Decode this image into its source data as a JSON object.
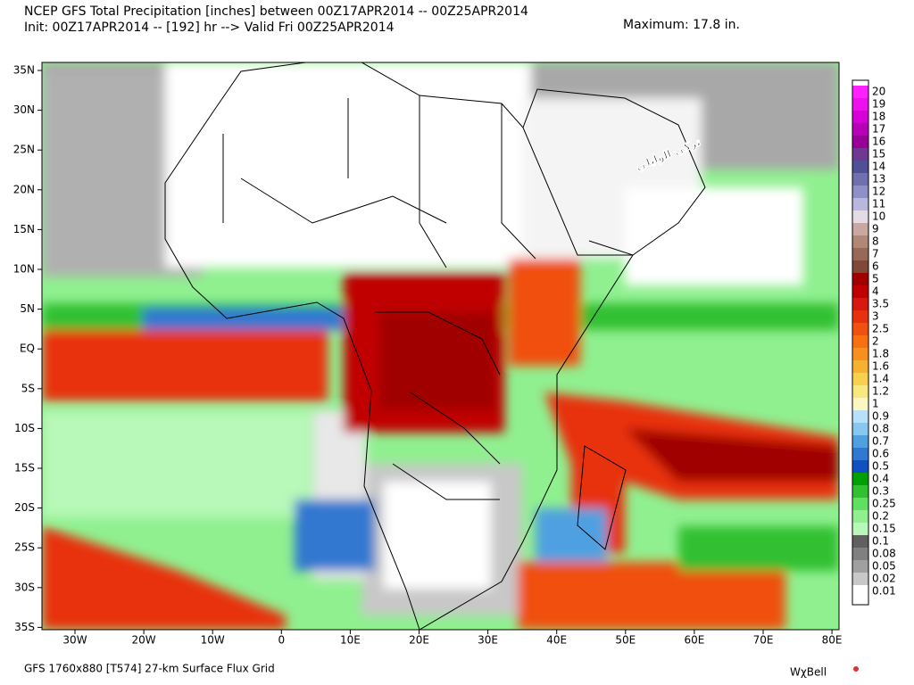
{
  "header": {
    "line1": "NCEP GFS Total Precipitation [inches] between 00Z17APR2014 -- 00Z25APR2014",
    "line2": "Init: 00Z17APR2014 -- [192] hr --> Valid Fri 00Z25APR2014",
    "maximum": "Maximum:   17.8 in."
  },
  "watermark": "تركي الوايلي",
  "map": {
    "lat_labels": [
      "35N",
      "30N",
      "25N",
      "20N",
      "15N",
      "10N",
      "5N",
      "EQ",
      "5S",
      "10S",
      "15S",
      "20S",
      "25S",
      "30S",
      "35S"
    ],
    "lon_labels": [
      "30W",
      "20W",
      "10W",
      "0",
      "10E",
      "20E",
      "30E",
      "40E",
      "50E",
      "60E",
      "70E",
      "80E"
    ]
  },
  "colorbar": [
    {
      "label": "20",
      "color": "#ff20ff"
    },
    {
      "label": "19",
      "color": "#ee10ee"
    },
    {
      "label": "18",
      "color": "#d800d8"
    },
    {
      "label": "17",
      "color": "#b800b8"
    },
    {
      "label": "16",
      "color": "#980098"
    },
    {
      "label": "15",
      "color": "#703890"
    },
    {
      "label": "14",
      "color": "#505098"
    },
    {
      "label": "13",
      "color": "#7070b0"
    },
    {
      "label": "12",
      "color": "#9090c8"
    },
    {
      "label": "11",
      "color": "#b8b8dc"
    },
    {
      "label": "10",
      "color": "#e4dce4"
    },
    {
      "label": "9",
      "color": "#c8a8a0"
    },
    {
      "label": "8",
      "color": "#b08878"
    },
    {
      "label": "7",
      "color": "#986858"
    },
    {
      "label": "6",
      "color": "#804838"
    },
    {
      "label": "5",
      "color": "#a00000"
    },
    {
      "label": "4",
      "color": "#c00000"
    },
    {
      "label": "3.5",
      "color": "#d81810"
    },
    {
      "label": "3",
      "color": "#e83010"
    },
    {
      "label": "2.5",
      "color": "#f05010"
    },
    {
      "label": "2",
      "color": "#f87010"
    },
    {
      "label": "1.8",
      "color": "#f89020"
    },
    {
      "label": "1.6",
      "color": "#f8b030"
    },
    {
      "label": "1.4",
      "color": "#f8d050"
    },
    {
      "label": "1.2",
      "color": "#f8e880"
    },
    {
      "label": "1",
      "color": "#f8f8c0"
    },
    {
      "label": "0.9",
      "color": "#b8e0f8"
    },
    {
      "label": "0.8",
      "color": "#88c8f0"
    },
    {
      "label": "0.7",
      "color": "#50a0e0"
    },
    {
      "label": "0.6",
      "color": "#3078d0"
    },
    {
      "label": "0.5",
      "color": "#1050c0"
    },
    {
      "label": "0.4",
      "color": "#00a000"
    },
    {
      "label": "0.3",
      "color": "#30c030"
    },
    {
      "label": "0.25",
      "color": "#60e060"
    },
    {
      "label": "0.2",
      "color": "#90f090"
    },
    {
      "label": "0.15",
      "color": "#b8f8b8"
    },
    {
      "label": "0.1",
      "color": "#606060"
    },
    {
      "label": "0.08",
      "color": "#808080"
    },
    {
      "label": "0.05",
      "color": "#a0a0a0"
    },
    {
      "label": "0.02",
      "color": "#c8c8c8"
    },
    {
      "label": "0.01",
      "color": "#ffffff"
    }
  ],
  "footer": {
    "grid": "GFS 1760x880 [T574] 27-km Surface Flux Grid",
    "logo": "WχBell"
  }
}
